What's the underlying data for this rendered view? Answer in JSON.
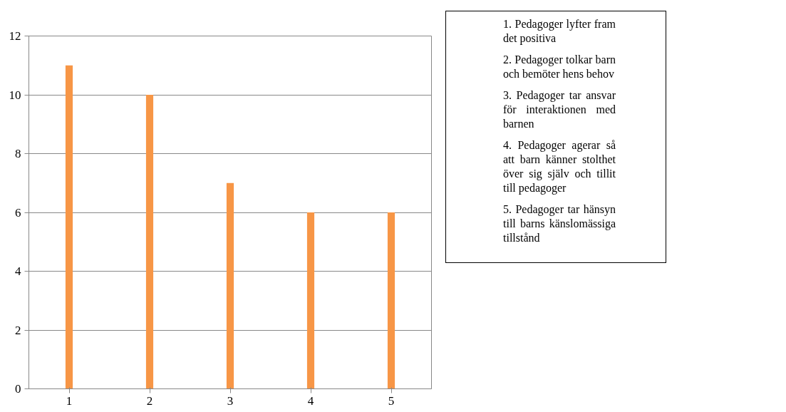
{
  "chart_data": {
    "type": "bar",
    "categories": [
      "1",
      "2",
      "3",
      "4",
      "5"
    ],
    "values": [
      11,
      10,
      7,
      6,
      6
    ],
    "color": "#f79646",
    "ylim": [
      0,
      12
    ],
    "yticks": [
      0,
      2,
      4,
      6,
      8,
      10,
      12
    ],
    "grid": "y",
    "annotations": [
      "1. Pedagoger lyfter fram det positiva",
      "2. Pedagoger tolkar barn och bemöter hens behov",
      "3. Pedagoger tar ansvar för interaktionen med barnen",
      "4. Pedagoger agerar så att barn känner stolthet över sig själv och tillit till pedagoger",
      "5. Pedagoger tar hänsyn till barns känslomässiga tillstånd"
    ]
  }
}
